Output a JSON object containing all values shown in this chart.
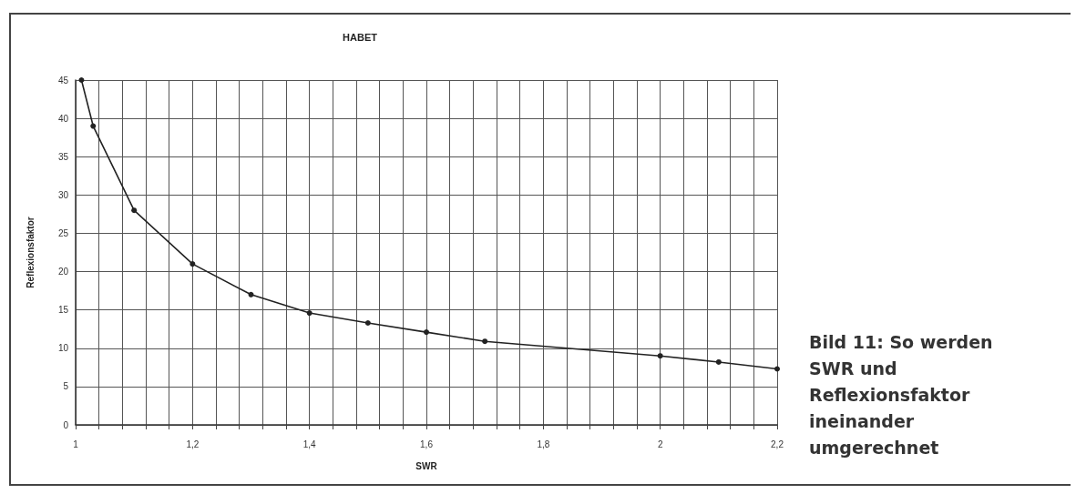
{
  "chart_data": {
    "type": "line",
    "title": "HABET",
    "xlabel": "SWR",
    "ylabel": "Reflexionsfaktor",
    "annotations": [
      "Bild 11: So werden SWR und Reflexionsfaktor ineinander umgerechnet"
    ],
    "x": [
      1.01,
      1.03,
      1.1,
      1.2,
      1.3,
      1.4,
      1.5,
      1.6,
      1.7,
      2.0,
      2.1,
      2.2
    ],
    "series": [
      {
        "color": "#222222",
        "values": [
          45,
          39,
          28,
          21,
          17,
          14.6,
          13.3,
          12.1,
          10.9,
          9,
          8.2,
          7.3
        ]
      }
    ],
    "xlim": [
      1,
      2.2
    ],
    "xticks": [
      1,
      {
        "value": 1.04,
        "label": null
      },
      {
        "value": 1.08,
        "label": null
      },
      {
        "value": 1.12,
        "label": null
      },
      {
        "value": 1.16,
        "label": null
      },
      {
        "value": 1.2,
        "label": "1,2"
      },
      {
        "value": 1.24,
        "label": null
      },
      {
        "value": 1.28,
        "label": null
      },
      {
        "value": 1.32,
        "label": null
      },
      {
        "value": 1.36,
        "label": null
      },
      {
        "value": 1.4,
        "label": "1,4"
      },
      {
        "value": 1.44,
        "label": null
      },
      {
        "value": 1.48,
        "label": null
      },
      {
        "value": 1.52,
        "label": null
      },
      {
        "value": 1.56,
        "label": null
      },
      {
        "value": 1.6,
        "label": "1,6"
      },
      {
        "value": 1.64,
        "label": null
      },
      {
        "value": 1.68,
        "label": null
      },
      {
        "value": 1.72,
        "label": null
      },
      {
        "value": 1.76,
        "label": null
      },
      {
        "value": 1.8,
        "label": "1,8"
      },
      {
        "value": 1.84,
        "label": null
      },
      {
        "value": 1.88,
        "label": null
      },
      {
        "value": 1.92,
        "label": null
      },
      {
        "value": 1.96,
        "label": null
      },
      2,
      {
        "value": 2.04,
        "label": null
      },
      {
        "value": 2.08,
        "label": null
      },
      {
        "value": 2.12,
        "label": null
      },
      {
        "value": 2.16,
        "label": null
      },
      {
        "value": 2.2,
        "label": "2,2"
      }
    ],
    "ylim": [
      0,
      45
    ],
    "yticks": [
      0,
      5,
      10,
      15,
      20,
      25,
      30,
      35,
      40,
      45
    ],
    "grid": true,
    "marker": "circle",
    "line_style": "solid"
  }
}
